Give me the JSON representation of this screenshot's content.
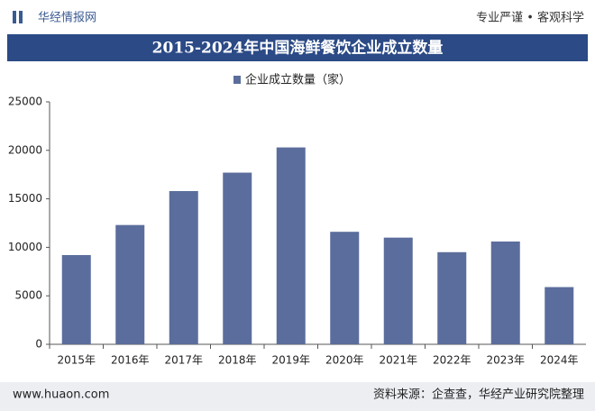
{
  "header": {
    "brand": "华经情报网",
    "slogan": "专业严谨 • 客观科学"
  },
  "footer": {
    "url": "www.huaon.com",
    "source": "资料来源：企查查，华经产业研究院整理"
  },
  "chart_data": {
    "type": "bar",
    "title": "2015-2024年中国海鲜餐饮企业成立数量",
    "categories": [
      "2015年",
      "2016年",
      "2017年",
      "2018年",
      "2019年",
      "2020年",
      "2021年",
      "2022年",
      "2023年",
      "2024年"
    ],
    "series": [
      {
        "name": "企业成立数量（家）",
        "color": "#5b6d9c",
        "values": [
          9200,
          12300,
          15800,
          17700,
          20300,
          11600,
          11000,
          9500,
          10600,
          5900
        ]
      }
    ],
    "ylim": [
      0,
      25000
    ],
    "yticks": [
      0,
      5000,
      10000,
      15000,
      20000,
      25000
    ],
    "grid": false
  }
}
